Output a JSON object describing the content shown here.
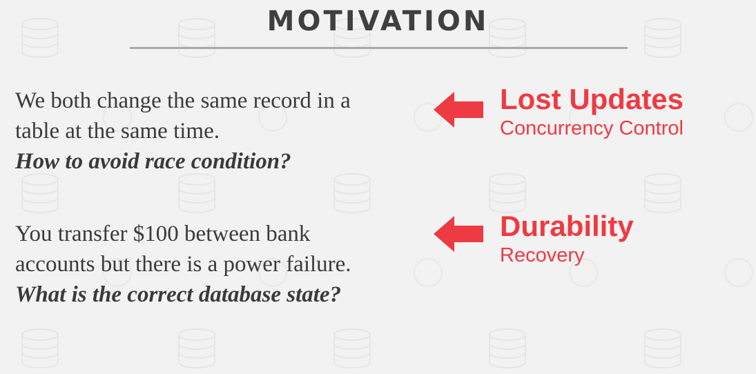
{
  "slide": {
    "title": "MOTIVATION",
    "accent_color": "#ee3a43",
    "text_color": "#3a3a3a",
    "background_color": "#f2f2f2"
  },
  "scenarios": [
    {
      "lines": [
        "We both change the same record in a",
        "table at the same time."
      ],
      "question": "How to avoid race condition?",
      "topic": "Lost Updates",
      "subtopic": "Concurrency Control",
      "icon": "arrow-left-icon"
    },
    {
      "lines": [
        "You transfer $100 between bank",
        "accounts but there is a power failure."
      ],
      "question": "What is the correct database state?",
      "topic": "Durability",
      "subtopic": "Recovery",
      "icon": "arrow-left-icon"
    }
  ]
}
